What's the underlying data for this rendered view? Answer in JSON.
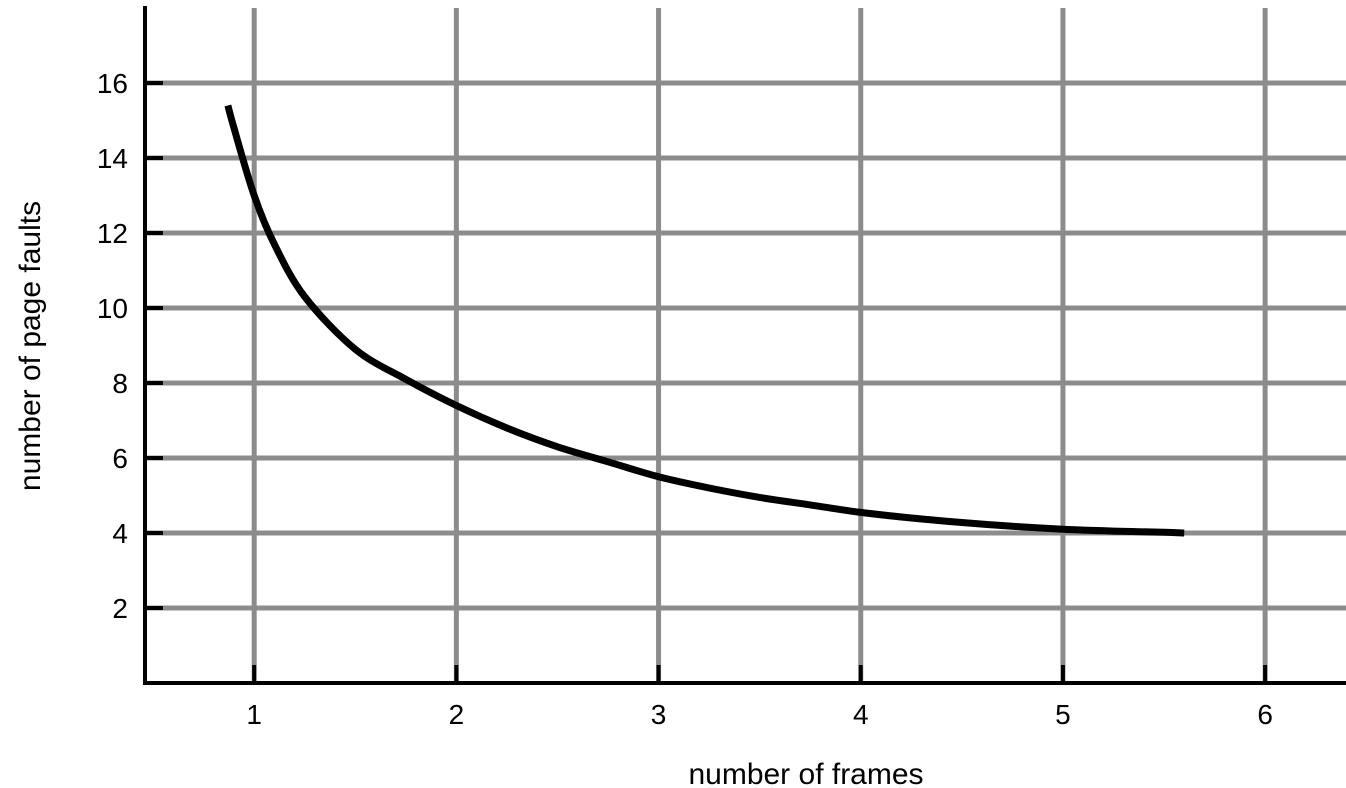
{
  "chart_data": {
    "type": "line",
    "title": "",
    "xlabel": "number of frames",
    "ylabel": "number of page faults",
    "x_ticks": [
      1,
      2,
      3,
      4,
      5,
      6
    ],
    "y_ticks": [
      2,
      4,
      6,
      8,
      10,
      12,
      14,
      16
    ],
    "xlim": [
      0.46,
      6.4
    ],
    "ylim": [
      0,
      18
    ],
    "grid": true,
    "legend": "none",
    "series": [
      {
        "x": [
          0.87,
          0.9,
          1.0,
          1.1,
          1.25,
          1.5,
          1.75,
          2.0,
          2.25,
          2.5,
          2.75,
          3.0,
          3.25,
          3.5,
          3.75,
          4.0,
          4.25,
          4.5,
          4.75,
          5.0,
          5.25,
          5.5,
          5.6
        ],
        "y": [
          15.4,
          14.8,
          13.0,
          11.7,
          10.3,
          8.9,
          8.1,
          7.4,
          6.8,
          6.3,
          5.9,
          5.5,
          5.2,
          4.95,
          4.75,
          4.55,
          4.4,
          4.28,
          4.18,
          4.1,
          4.05,
          4.02,
          4.0
        ]
      }
    ],
    "colors": {
      "grid": "#8c8c8c",
      "axis": "#000000",
      "line": "#000000"
    }
  }
}
